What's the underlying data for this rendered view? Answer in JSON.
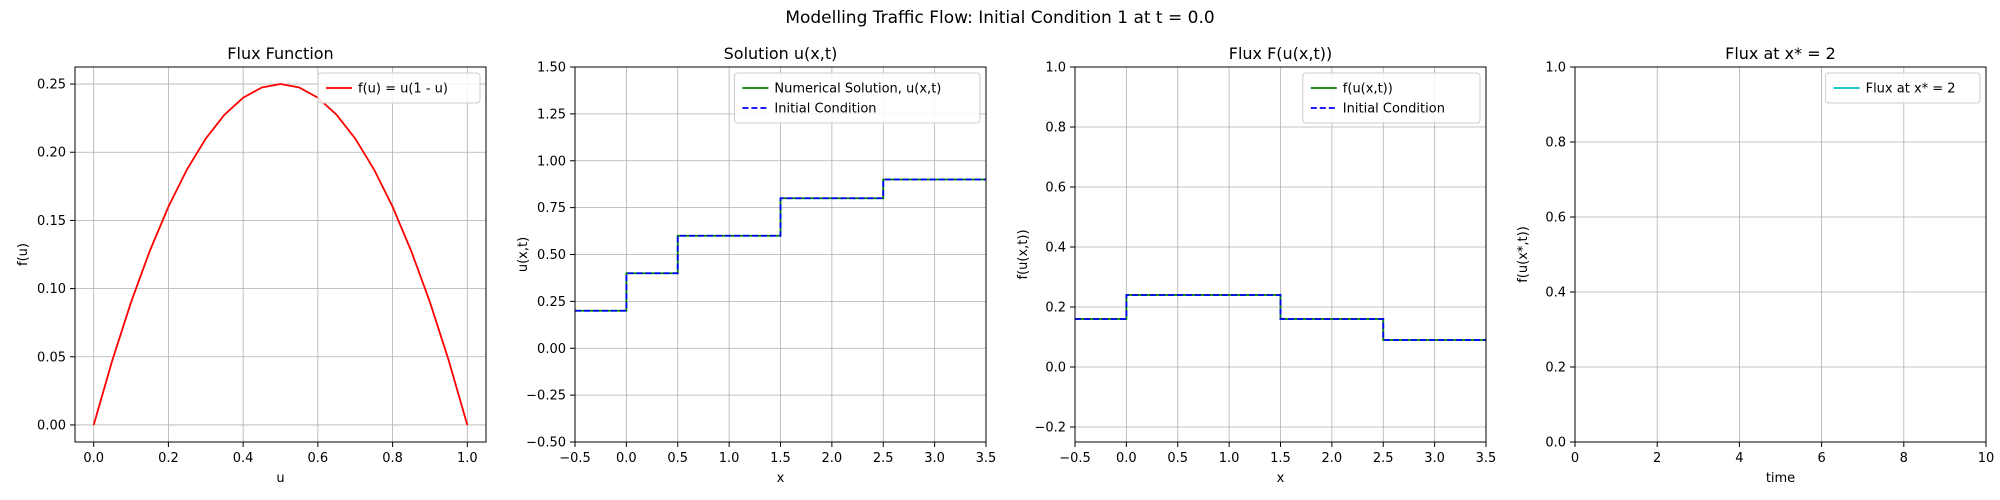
{
  "figure": {
    "suptitle": "Modelling Traffic Flow: Initial Condition 1 at t = 0.0"
  },
  "colors": {
    "red": "#ff0000",
    "green": "#008000",
    "blue": "#0000ff",
    "cyan": "#00bfbf",
    "grid": "#b0b0b0"
  },
  "chart_data": [
    {
      "type": "line",
      "title": "Flux Function",
      "xlabel": "u",
      "ylabel": "f(u)",
      "xlim": [
        -0.05,
        1.05
      ],
      "ylim": [
        -0.0125,
        0.2625
      ],
      "xticks": [
        0.0,
        0.2,
        0.4,
        0.6,
        0.8,
        1.0
      ],
      "xtick_labels": [
        "0.0",
        "0.2",
        "0.4",
        "0.6",
        "0.8",
        "1.0"
      ],
      "yticks": [
        0.0,
        0.05,
        0.1,
        0.15,
        0.2,
        0.25
      ],
      "ytick_labels": [
        "0.00",
        "0.05",
        "0.10",
        "0.15",
        "0.20",
        "0.25"
      ],
      "grid": true,
      "legend_position": "top-right",
      "series": [
        {
          "name": "f(u) = u(1 - u)",
          "color": "red",
          "style": "solid",
          "x": [
            0.0,
            0.05,
            0.1,
            0.15,
            0.2,
            0.25,
            0.3,
            0.35,
            0.4,
            0.45,
            0.5,
            0.55,
            0.6,
            0.65,
            0.7,
            0.75,
            0.8,
            0.85,
            0.9,
            0.95,
            1.0
          ],
          "y": [
            0.0,
            0.0475,
            0.09,
            0.1275,
            0.16,
            0.1875,
            0.21,
            0.2275,
            0.24,
            0.2475,
            0.25,
            0.2475,
            0.24,
            0.2275,
            0.21,
            0.1875,
            0.16,
            0.1275,
            0.09,
            0.0475,
            0.0
          ]
        }
      ]
    },
    {
      "type": "line",
      "title": "Solution u(x,t)",
      "xlabel": "x",
      "ylabel": "u(x,t)",
      "xlim": [
        -0.5,
        3.5
      ],
      "ylim": [
        -0.5,
        1.5
      ],
      "xticks": [
        -0.5,
        0.0,
        0.5,
        1.0,
        1.5,
        2.0,
        2.5,
        3.0,
        3.5
      ],
      "xtick_labels": [
        "−0.5",
        "0.0",
        "0.5",
        "1.0",
        "1.5",
        "2.0",
        "2.5",
        "3.0",
        "3.5"
      ],
      "yticks": [
        -0.5,
        -0.25,
        0.0,
        0.25,
        0.5,
        0.75,
        1.0,
        1.25,
        1.5
      ],
      "ytick_labels": [
        "−0.50",
        "−0.25",
        "0.00",
        "0.25",
        "0.50",
        "0.75",
        "1.00",
        "1.25",
        "1.50"
      ],
      "grid": true,
      "legend_position": "top-right",
      "series": [
        {
          "name": "Numerical Solution, u(x,t)",
          "color": "green",
          "style": "solid",
          "x": [
            -0.5,
            0.0,
            0.0,
            0.5,
            0.5,
            1.5,
            1.5,
            2.5,
            2.5,
            3.5
          ],
          "y": [
            0.2,
            0.2,
            0.4,
            0.4,
            0.6,
            0.6,
            0.8,
            0.8,
            0.9,
            0.9
          ]
        },
        {
          "name": "Initial Condition",
          "color": "blue",
          "style": "dashed",
          "x": [
            -0.5,
            0.0,
            0.0,
            0.5,
            0.5,
            1.5,
            1.5,
            2.5,
            2.5,
            3.5
          ],
          "y": [
            0.2,
            0.2,
            0.4,
            0.4,
            0.6,
            0.6,
            0.8,
            0.8,
            0.9,
            0.9
          ]
        }
      ]
    },
    {
      "type": "line",
      "title": "Flux F(u(x,t))",
      "xlabel": "x",
      "ylabel": "f(u(x,t))",
      "xlim": [
        -0.5,
        3.5
      ],
      "ylim": [
        -0.25,
        1.0
      ],
      "xticks": [
        -0.5,
        0.0,
        0.5,
        1.0,
        1.5,
        2.0,
        2.5,
        3.0,
        3.5
      ],
      "xtick_labels": [
        "−0.5",
        "0.0",
        "0.5",
        "1.0",
        "1.5",
        "2.0",
        "2.5",
        "3.0",
        "3.5"
      ],
      "yticks": [
        -0.2,
        0.0,
        0.2,
        0.4,
        0.6,
        0.8,
        1.0
      ],
      "ytick_labels": [
        "−0.2",
        "0.0",
        "0.2",
        "0.4",
        "0.6",
        "0.8",
        "1.0"
      ],
      "grid": true,
      "legend_position": "top-right",
      "series": [
        {
          "name": "f(u(x,t))",
          "color": "green",
          "style": "solid",
          "x": [
            -0.5,
            0.0,
            0.0,
            1.5,
            1.5,
            2.5,
            2.5,
            3.5
          ],
          "y": [
            0.16,
            0.16,
            0.24,
            0.24,
            0.16,
            0.16,
            0.09,
            0.09
          ]
        },
        {
          "name": "Initial Condition",
          "color": "blue",
          "style": "dashed",
          "x": [
            -0.5,
            0.0,
            0.0,
            1.5,
            1.5,
            2.5,
            2.5,
            3.5
          ],
          "y": [
            0.16,
            0.16,
            0.24,
            0.24,
            0.16,
            0.16,
            0.09,
            0.09
          ]
        }
      ]
    },
    {
      "type": "line",
      "title": "Flux at x* = 2",
      "xlabel": "time",
      "ylabel": "f(u(x*,t))",
      "xlim": [
        0,
        10
      ],
      "ylim": [
        0.0,
        1.0
      ],
      "xticks": [
        0,
        2,
        4,
        6,
        8,
        10
      ],
      "xtick_labels": [
        "0",
        "2",
        "4",
        "6",
        "8",
        "10"
      ],
      "yticks": [
        0.0,
        0.2,
        0.4,
        0.6,
        0.8,
        1.0
      ],
      "ytick_labels": [
        "0.0",
        "0.2",
        "0.4",
        "0.6",
        "0.8",
        "1.0"
      ],
      "grid": true,
      "legend_position": "top-right",
      "series": [
        {
          "name": "Flux at x* = 2",
          "color": "cyan",
          "style": "solid",
          "x": [],
          "y": []
        }
      ]
    }
  ]
}
